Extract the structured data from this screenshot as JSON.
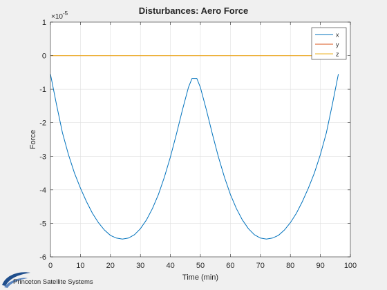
{
  "window": {
    "background": "#f0f0f0"
  },
  "footer": {
    "logo_text": "Princeton Satellite Systems"
  },
  "chart_data": {
    "type": "line",
    "title": "Disturbances: Aero Force",
    "xlabel": "Time (min)",
    "ylabel": "Force",
    "y_exponent_label": "×10",
    "y_exponent_power": "-5",
    "xlim": [
      0,
      100
    ],
    "ylim": [
      -6,
      1
    ],
    "x_ticks": [
      0,
      10,
      20,
      30,
      40,
      50,
      60,
      70,
      80,
      90,
      100
    ],
    "y_ticks": [
      -6,
      -5,
      -4,
      -3,
      -2,
      -1,
      0,
      1
    ],
    "grid": true,
    "legend_position": "top-right",
    "series": [
      {
        "name": "x",
        "color": "#0072bd",
        "points": [
          [
            0,
            -0.55
          ],
          [
            2,
            -1.45
          ],
          [
            4,
            -2.3
          ],
          [
            6,
            -2.95
          ],
          [
            8,
            -3.5
          ],
          [
            10,
            -3.95
          ],
          [
            12,
            -4.35
          ],
          [
            14,
            -4.7
          ],
          [
            16,
            -4.98
          ],
          [
            18,
            -5.2
          ],
          [
            20,
            -5.36
          ],
          [
            22,
            -5.44
          ],
          [
            24,
            -5.47
          ],
          [
            26,
            -5.44
          ],
          [
            28,
            -5.34
          ],
          [
            30,
            -5.16
          ],
          [
            32,
            -4.9
          ],
          [
            34,
            -4.56
          ],
          [
            36,
            -4.14
          ],
          [
            38,
            -3.62
          ],
          [
            40,
            -3.02
          ],
          [
            42,
            -2.34
          ],
          [
            44,
            -1.62
          ],
          [
            46,
            -0.95
          ],
          [
            47.2,
            -0.68
          ],
          [
            48.8,
            -0.68
          ],
          [
            50,
            -0.95
          ],
          [
            52,
            -1.62
          ],
          [
            54,
            -2.34
          ],
          [
            56,
            -3.02
          ],
          [
            58,
            -3.62
          ],
          [
            60,
            -4.14
          ],
          [
            62,
            -4.56
          ],
          [
            64,
            -4.9
          ],
          [
            66,
            -5.16
          ],
          [
            68,
            -5.34
          ],
          [
            70,
            -5.44
          ],
          [
            72,
            -5.47
          ],
          [
            74,
            -5.44
          ],
          [
            76,
            -5.36
          ],
          [
            78,
            -5.2
          ],
          [
            80,
            -4.98
          ],
          [
            82,
            -4.7
          ],
          [
            84,
            -4.35
          ],
          [
            86,
            -3.95
          ],
          [
            88,
            -3.5
          ],
          [
            90,
            -2.95
          ],
          [
            92,
            -2.3
          ],
          [
            94,
            -1.45
          ],
          [
            96,
            -0.55
          ]
        ]
      },
      {
        "name": "y",
        "color": "#d95319",
        "points": [
          [
            0,
            0
          ],
          [
            96,
            0
          ]
        ]
      },
      {
        "name": "z",
        "color": "#edb120",
        "points": [
          [
            0,
            0
          ],
          [
            96,
            0
          ]
        ]
      }
    ]
  }
}
